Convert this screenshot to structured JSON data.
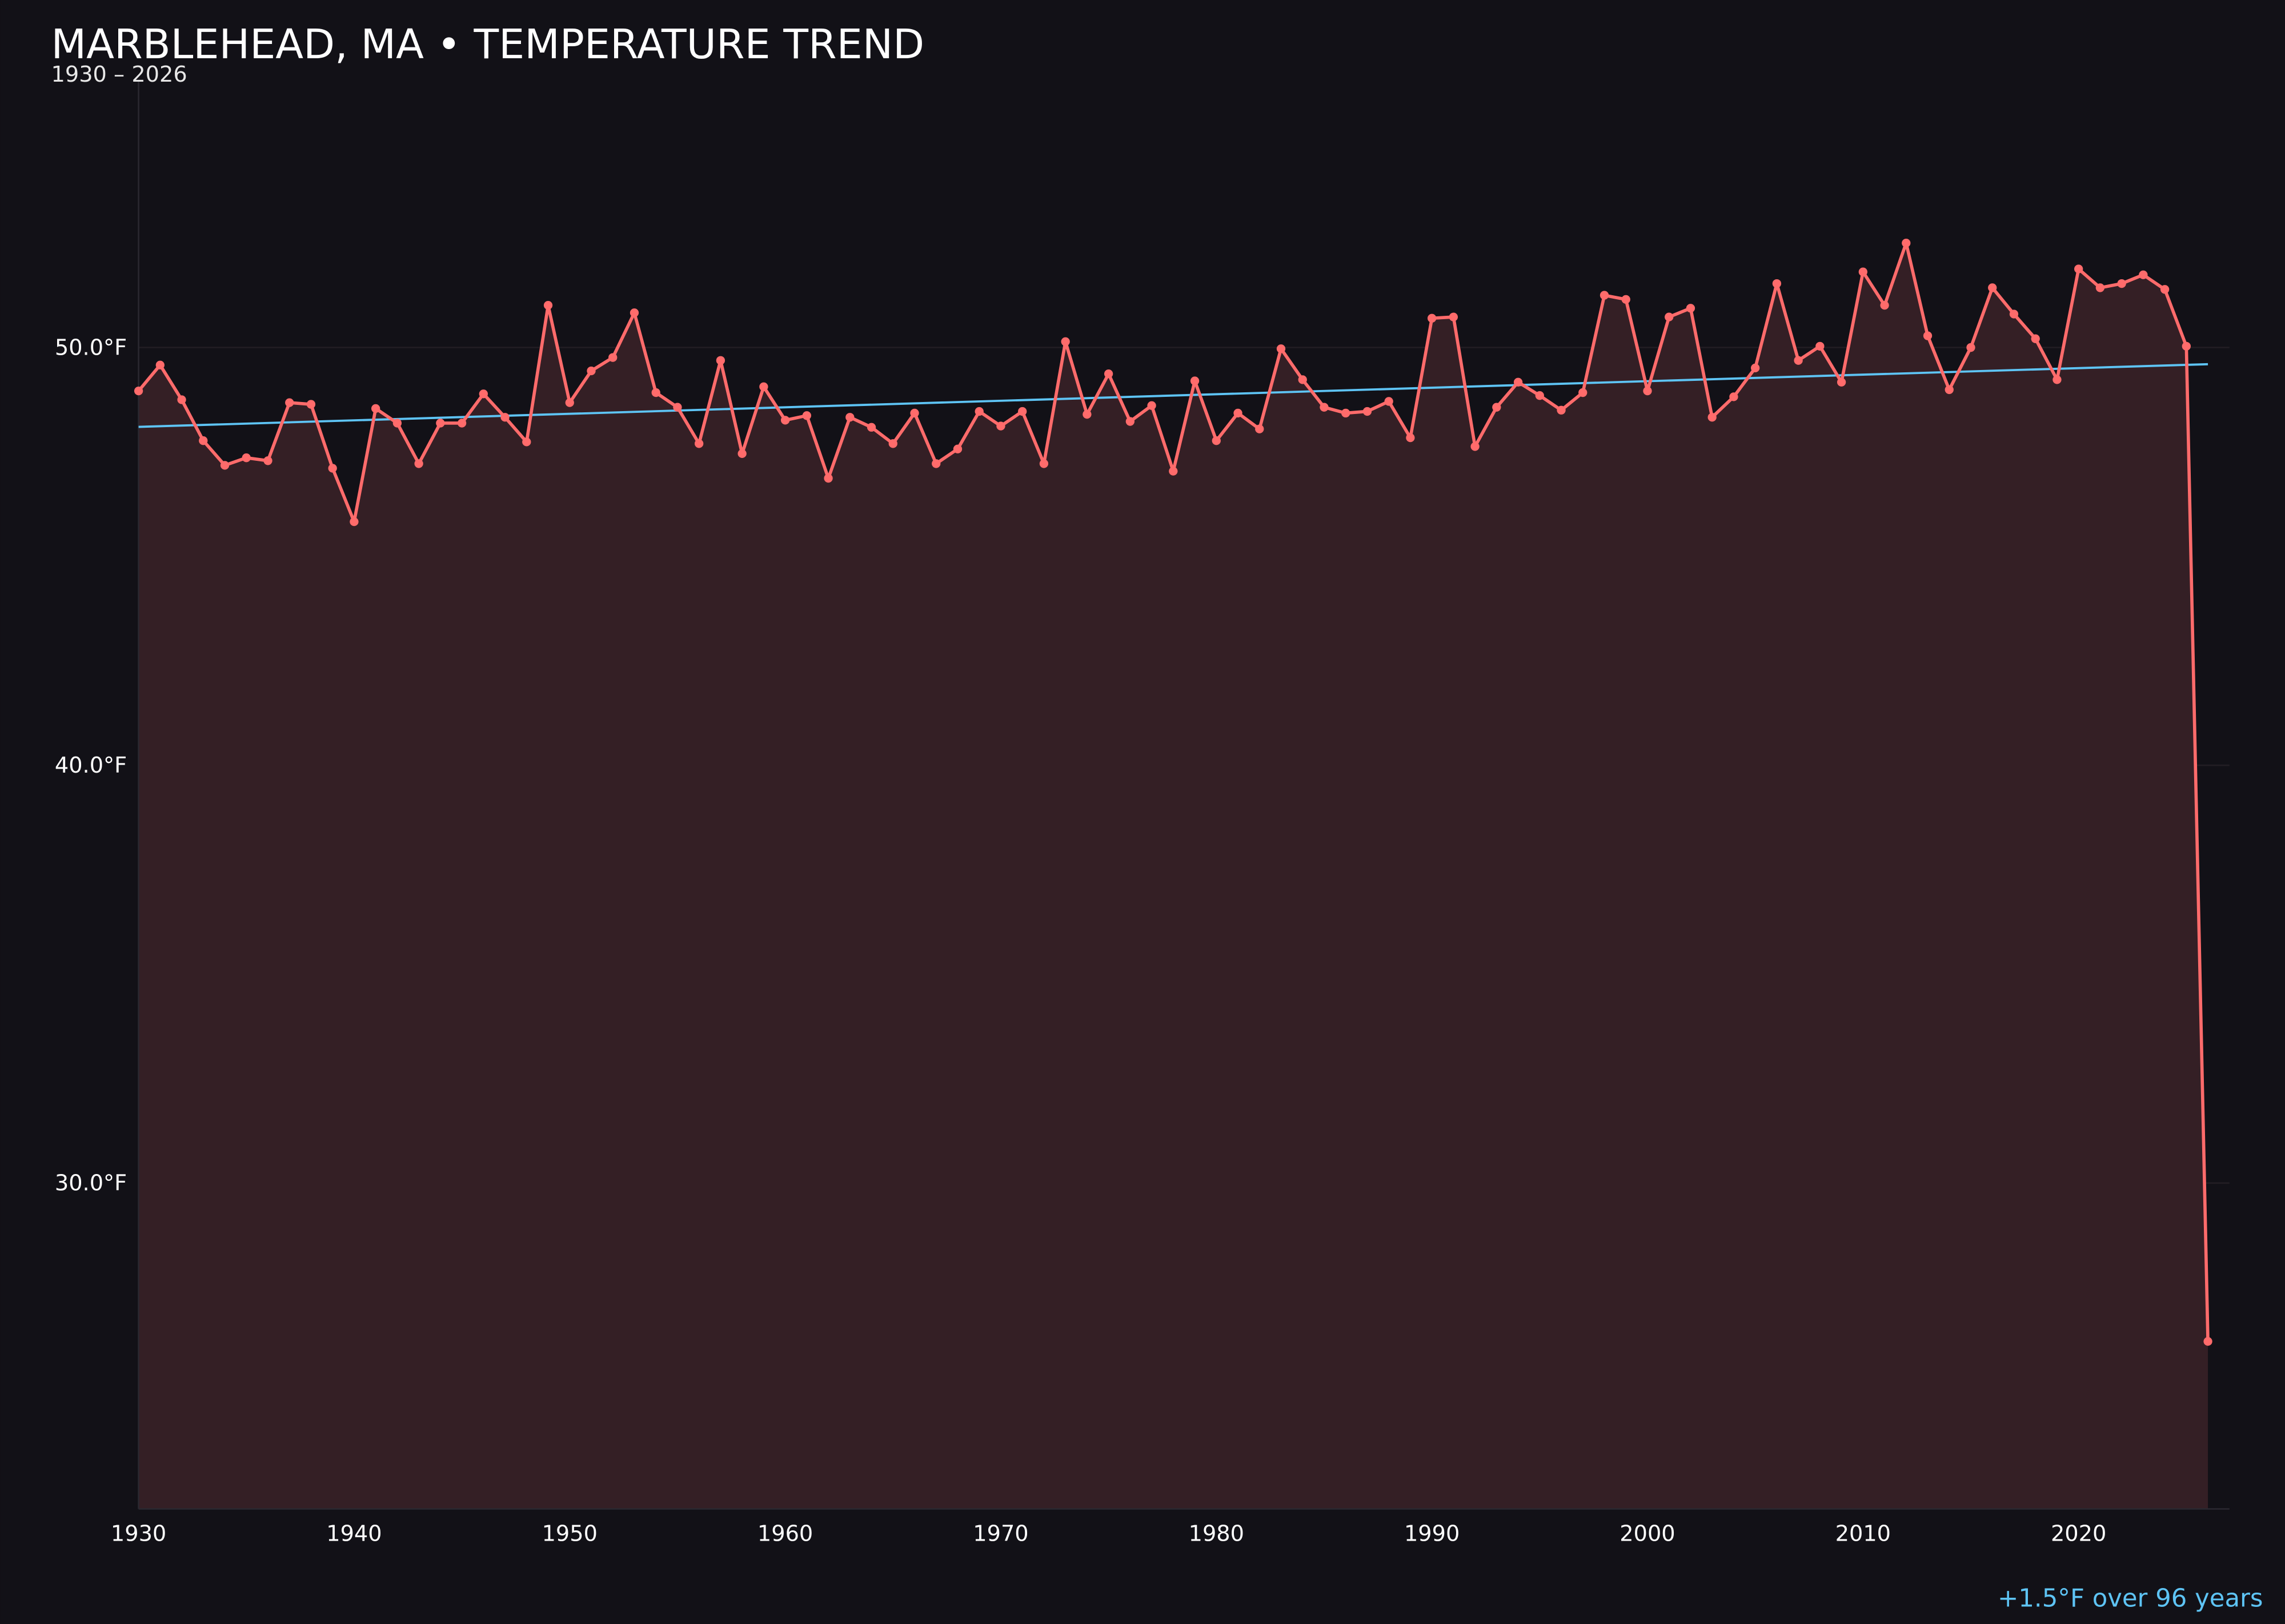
{
  "title": "MARBLEHEAD, MA • TEMPERATURE TREND",
  "subtitle": "1930 – 2026",
  "footer": "+1.5°F over 96 years",
  "colors": {
    "background": "#121117",
    "line": "#ff6b6b",
    "area_fill": "#341f25",
    "trend": "#5ec4f5",
    "grid": "#221e24",
    "text": "#ffffff"
  },
  "chart_data": {
    "type": "line",
    "title": "MARBLEHEAD, MA • TEMPERATURE TREND",
    "subtitle": "1930 – 2026",
    "xlabel": "",
    "ylabel": "",
    "xlim": [
      1930,
      2027
    ],
    "ylim": [
      22.2,
      56.4
    ],
    "grid": true,
    "x_ticks": [
      "1930",
      "1940",
      "1950",
      "1960",
      "1970",
      "1980",
      "1990",
      "2000",
      "2010",
      "2020"
    ],
    "y_ticks": [
      "30.0°F",
      "40.0°F",
      "50.0°F"
    ],
    "y_tick_values": [
      30,
      40,
      50
    ],
    "x_tick_values": [
      1930,
      1940,
      1950,
      1960,
      1970,
      1980,
      1990,
      2000,
      2010,
      2020
    ],
    "x": [
      1930,
      1931,
      1932,
      1933,
      1934,
      1935,
      1936,
      1937,
      1938,
      1939,
      1940,
      1941,
      1942,
      1943,
      1944,
      1945,
      1946,
      1947,
      1948,
      1949,
      1950,
      1951,
      1952,
      1953,
      1954,
      1955,
      1956,
      1957,
      1958,
      1959,
      1960,
      1961,
      1962,
      1963,
      1964,
      1965,
      1966,
      1967,
      1968,
      1969,
      1970,
      1971,
      1972,
      1973,
      1974,
      1975,
      1976,
      1977,
      1978,
      1979,
      1980,
      1981,
      1982,
      1983,
      1984,
      1985,
      1986,
      1987,
      1988,
      1989,
      1990,
      1991,
      1992,
      1993,
      1994,
      1995,
      1996,
      1997,
      1998,
      1999,
      2000,
      2001,
      2002,
      2003,
      2004,
      2005,
      2006,
      2007,
      2008,
      2009,
      2010,
      2011,
      2012,
      2013,
      2014,
      2015,
      2016,
      2017,
      2018,
      2019,
      2020,
      2021,
      2022,
      2023,
      2024,
      2025,
      2026
    ],
    "series": [
      {
        "values": [
          48.96,
          49.58,
          48.75,
          47.77,
          47.18,
          47.36,
          47.29,
          48.68,
          48.64,
          47.11,
          45.83,
          48.54,
          48.19,
          47.22,
          48.19,
          48.19,
          48.89,
          48.33,
          47.74,
          51.01,
          48.68,
          49.44,
          49.76,
          50.83,
          48.92,
          48.57,
          47.7,
          49.69,
          47.46,
          49.06,
          48.26,
          48.37,
          46.87,
          48.33,
          48.09,
          47.7,
          48.43,
          47.22,
          47.57,
          48.47,
          48.12,
          48.47,
          47.22,
          50.14,
          48.4,
          49.37,
          48.23,
          48.61,
          47.04,
          49.2,
          47.77,
          48.43,
          48.05,
          49.97,
          49.23,
          48.57,
          48.43,
          48.47,
          48.71,
          47.84,
          50.7,
          50.73,
          47.63,
          48.57,
          49.17,
          48.85,
          48.5,
          48.92,
          51.25,
          51.15,
          48.96,
          50.73,
          50.94,
          48.33,
          48.82,
          49.51,
          51.53,
          49.69,
          50.03,
          49.17,
          51.81,
          51.01,
          52.5,
          50.28,
          48.99,
          50.0,
          51.43,
          50.8,
          50.21,
          49.23,
          51.88,
          51.43,
          51.53,
          51.74,
          51.39,
          50.03,
          26.21
        ]
      }
    ],
    "trend_line": {
      "x": [
        1930,
        2026
      ],
      "y": [
        48.1,
        49.6
      ]
    },
    "annotation": "+1.5°F over 96 years"
  }
}
